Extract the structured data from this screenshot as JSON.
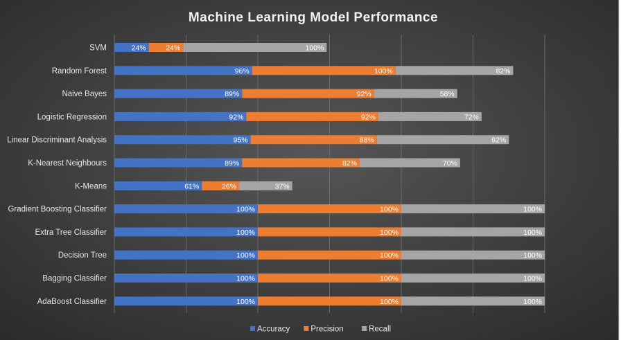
{
  "chart_data": {
    "type": "bar",
    "orientation": "horizontal",
    "stacked": true,
    "title": "Machine Learning Model Performance",
    "categories": [
      "SVM",
      "Random Forest",
      "Naive Bayes",
      "Logistic Regression",
      "Linear Discriminant Analysis",
      "K-Nearest Neighbours",
      "K-Means",
      "Gradient Boosting Classifier",
      "Extra Tree Classifier",
      "Decision Tree",
      "Bagging Classifier",
      "AdaBoost Classifier"
    ],
    "series": [
      {
        "name": "Accuracy",
        "color": "#4472c4",
        "values": [
          24,
          96,
          89,
          92,
          95,
          89,
          61,
          100,
          100,
          100,
          100,
          100
        ]
      },
      {
        "name": "Precision",
        "color": "#ed7d31",
        "values": [
          24,
          100,
          92,
          92,
          88,
          82,
          26,
          100,
          100,
          100,
          100,
          100
        ]
      },
      {
        "name": "Recall",
        "color": "#a5a5a5",
        "values": [
          100,
          82,
          58,
          72,
          92,
          70,
          37,
          100,
          100,
          100,
          100,
          100
        ]
      }
    ],
    "value_suffix": "%",
    "xlim": [
      0,
      300
    ],
    "grid": true,
    "legend": "bottom",
    "background": "dark-radial",
    "data_labels": true
  }
}
